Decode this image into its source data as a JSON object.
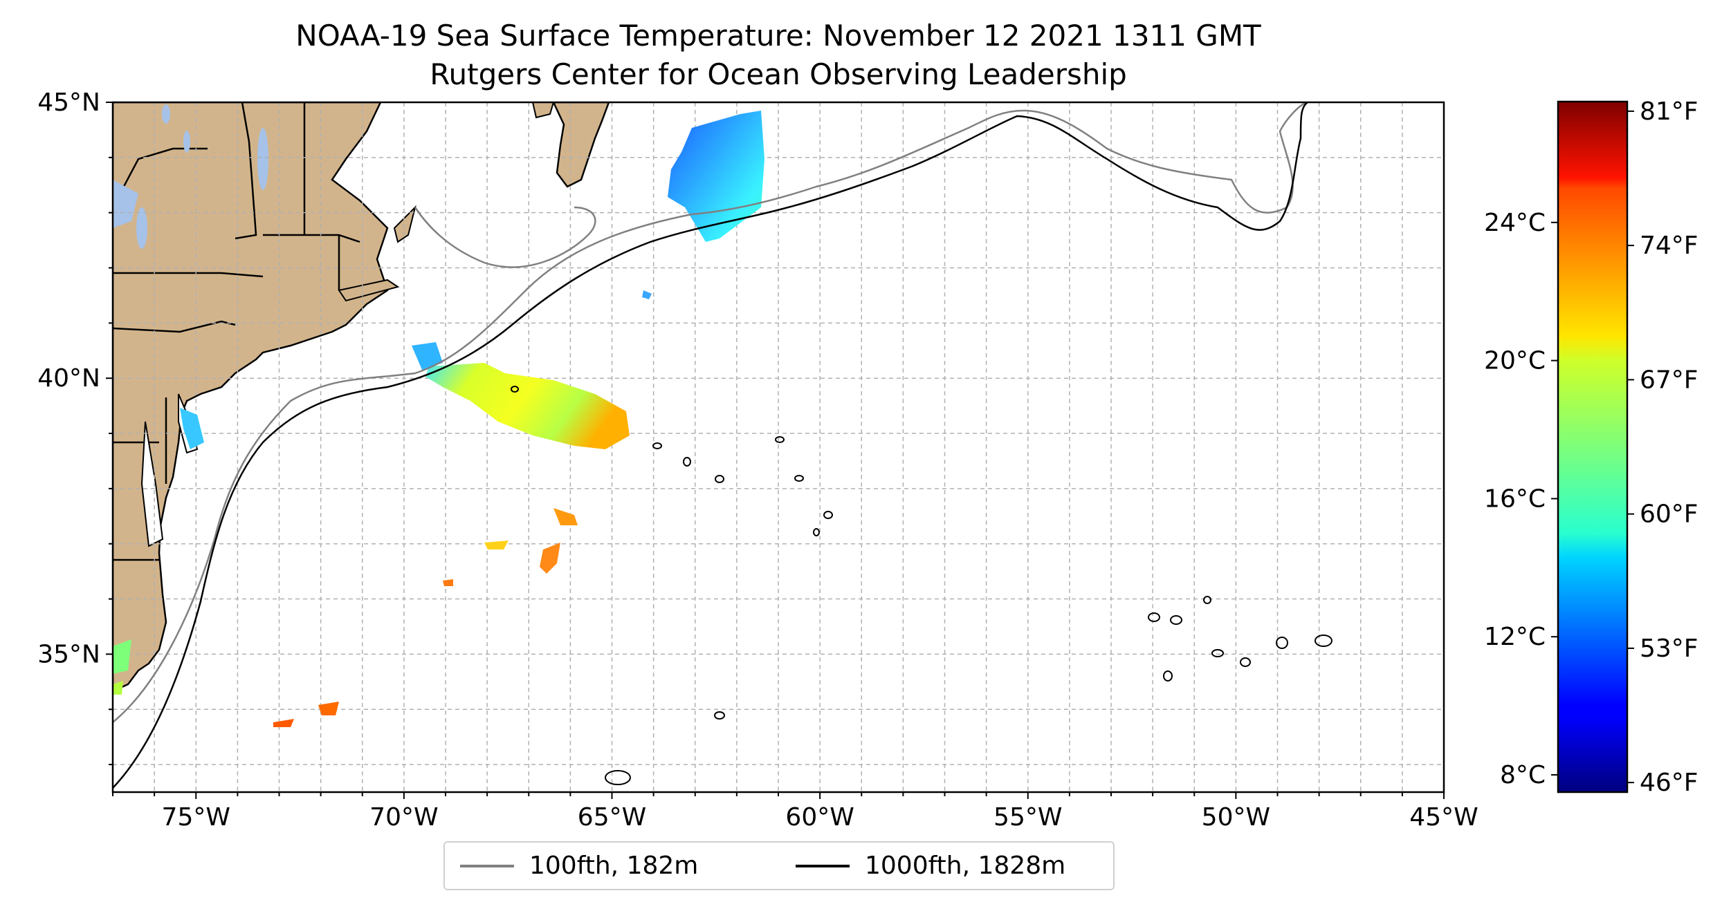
{
  "title": {
    "line1": "NOAA-19 Sea Surface Temperature: November 12 2021 1311 GMT",
    "line2": "Rutgers Center for Ocean Observing Leadership"
  },
  "map": {
    "extent": {
      "lon_min": -77,
      "lon_max": -45,
      "lat_min": 32.5,
      "lat_max": 45
    },
    "land_color": "#d2b48c",
    "lake_color": "#a6c2e8",
    "gridlines": "dashed, every 1 degree",
    "lat_ticks": [
      {
        "value": 45,
        "label": "45°N"
      },
      {
        "value": 40,
        "label": "40°N"
      },
      {
        "value": 35,
        "label": "35°N"
      }
    ],
    "lon_ticks": [
      {
        "value": -75,
        "label": "75°W"
      },
      {
        "value": -70,
        "label": "70°W"
      },
      {
        "value": -65,
        "label": "65°W"
      },
      {
        "value": -60,
        "label": "60°W"
      },
      {
        "value": -55,
        "label": "55°W"
      },
      {
        "value": -50,
        "label": "50°W"
      },
      {
        "value": -45,
        "label": "45°W"
      }
    ]
  },
  "colorbar": {
    "colormap": "jet",
    "range_f": [
      45.5,
      81.5
    ],
    "celsius_ticks": [
      {
        "value_c": 24,
        "label": "24°C"
      },
      {
        "value_c": 20,
        "label": "20°C"
      },
      {
        "value_c": 16,
        "label": "16°C"
      },
      {
        "value_c": 12,
        "label": "12°C"
      },
      {
        "value_c": 8,
        "label": "8°C"
      }
    ],
    "fahrenheit_ticks": [
      {
        "value_f": 81,
        "label": "81°F"
      },
      {
        "value_f": 74,
        "label": "74°F"
      },
      {
        "value_f": 67,
        "label": "67°F"
      },
      {
        "value_f": 60,
        "label": "60°F"
      },
      {
        "value_f": 53,
        "label": "53°F"
      },
      {
        "value_f": 46,
        "label": "46°F"
      }
    ]
  },
  "legend": {
    "items": [
      {
        "label": "100fth, 182m",
        "color": "#808080"
      },
      {
        "label": "1000fth, 1828m",
        "color": "#000000"
      }
    ]
  }
}
